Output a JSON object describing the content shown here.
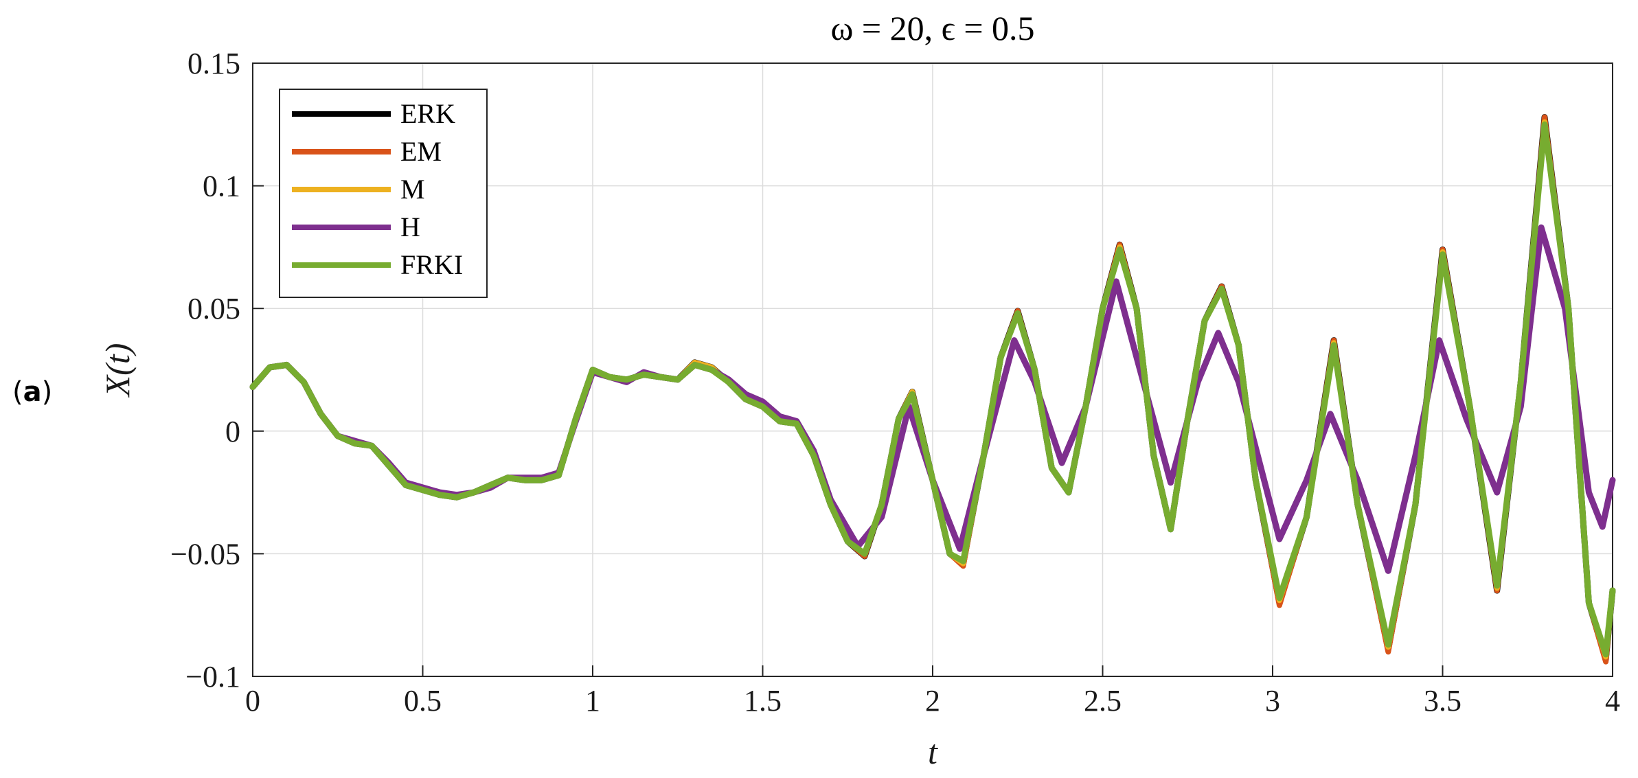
{
  "panel_label": {
    "open": "(",
    "letter": "a",
    "close": ")"
  },
  "chart_data": {
    "type": "line",
    "title": "ω = 20, ϵ = 0.5",
    "xlabel": "t",
    "ylabel": "X(t)",
    "xlim": [
      0,
      4
    ],
    "ylim": [
      -0.1,
      0.15
    ],
    "xticks": [
      0,
      0.5,
      1,
      1.5,
      2,
      2.5,
      3,
      3.5,
      4
    ],
    "xtick_labels": [
      "0",
      "0.5",
      "1",
      "1.5",
      "2",
      "2.5",
      "3",
      "3.5",
      "4"
    ],
    "yticks": [
      -0.1,
      -0.05,
      0,
      0.05,
      0.1,
      0.15
    ],
    "ytick_labels": [
      "−0.1",
      "−0.05",
      "0",
      "0.05",
      "0.1",
      "0.15"
    ],
    "grid": true,
    "legend_position": "top-left",
    "series": [
      {
        "name": "ERK",
        "color": "#000000",
        "x": [
          0,
          0.05,
          0.1,
          0.15,
          0.2,
          0.25,
          0.3,
          0.35,
          0.4,
          0.45,
          0.5,
          0.55,
          0.6,
          0.65,
          0.7,
          0.75,
          0.8,
          0.85,
          0.9,
          0.95,
          1.0,
          1.05,
          1.1,
          1.15,
          1.2,
          1.25,
          1.3,
          1.35,
          1.4,
          1.45,
          1.5,
          1.55,
          1.6,
          1.65,
          1.7,
          1.75,
          1.8,
          1.85,
          1.9,
          1.94,
          2.0,
          2.05,
          2.09,
          2.15,
          2.2,
          2.25,
          2.3,
          2.35,
          2.4,
          2.45,
          2.5,
          2.55,
          2.6,
          2.65,
          2.7,
          2.75,
          2.8,
          2.85,
          2.9,
          2.95,
          3.02,
          3.1,
          3.18,
          3.25,
          3.34,
          3.42,
          3.5,
          3.58,
          3.66,
          3.73,
          3.8,
          3.87,
          3.93,
          3.98,
          4.0
        ],
        "y": [
          0.018,
          0.026,
          0.027,
          0.02,
          0.007,
          -0.002,
          -0.005,
          -0.006,
          -0.014,
          -0.022,
          -0.024,
          -0.026,
          -0.027,
          -0.025,
          -0.022,
          -0.019,
          -0.02,
          -0.02,
          -0.018,
          0.005,
          0.025,
          0.022,
          0.021,
          0.023,
          0.022,
          0.021,
          0.028,
          0.026,
          0.02,
          0.013,
          0.01,
          0.004,
          0.003,
          -0.01,
          -0.03,
          -0.045,
          -0.051,
          -0.03,
          0.005,
          0.016,
          -0.02,
          -0.05,
          -0.054,
          -0.01,
          0.03,
          0.049,
          0.025,
          -0.015,
          -0.025,
          0.01,
          0.05,
          0.076,
          0.05,
          -0.01,
          -0.04,
          0.005,
          0.045,
          0.059,
          0.035,
          -0.02,
          -0.07,
          -0.035,
          0.037,
          -0.03,
          -0.089,
          -0.03,
          0.074,
          0.01,
          -0.065,
          0.02,
          0.128,
          0.05,
          -0.07,
          -0.093,
          -0.065
        ]
      },
      {
        "name": "EM",
        "color": "#D95319",
        "x": [
          0,
          0.05,
          0.1,
          0.15,
          0.2,
          0.25,
          0.3,
          0.35,
          0.4,
          0.45,
          0.5,
          0.55,
          0.6,
          0.65,
          0.7,
          0.75,
          0.8,
          0.85,
          0.9,
          0.95,
          1.0,
          1.05,
          1.1,
          1.15,
          1.2,
          1.25,
          1.3,
          1.35,
          1.4,
          1.45,
          1.5,
          1.55,
          1.6,
          1.65,
          1.7,
          1.75,
          1.8,
          1.85,
          1.9,
          1.94,
          2.0,
          2.05,
          2.09,
          2.15,
          2.2,
          2.25,
          2.3,
          2.35,
          2.4,
          2.45,
          2.5,
          2.55,
          2.6,
          2.65,
          2.7,
          2.75,
          2.8,
          2.85,
          2.9,
          2.95,
          3.02,
          3.1,
          3.18,
          3.25,
          3.34,
          3.42,
          3.5,
          3.58,
          3.66,
          3.73,
          3.8,
          3.87,
          3.93,
          3.98,
          4.0
        ],
        "y": [
          0.018,
          0.026,
          0.027,
          0.02,
          0.007,
          -0.002,
          -0.005,
          -0.006,
          -0.014,
          -0.022,
          -0.024,
          -0.026,
          -0.027,
          -0.025,
          -0.022,
          -0.019,
          -0.02,
          -0.02,
          -0.018,
          0.005,
          0.025,
          0.022,
          0.021,
          0.023,
          0.022,
          0.021,
          0.028,
          0.026,
          0.02,
          0.013,
          0.01,
          0.004,
          0.003,
          -0.01,
          -0.03,
          -0.045,
          -0.051,
          -0.03,
          0.005,
          0.016,
          -0.02,
          -0.05,
          -0.055,
          -0.01,
          0.03,
          0.049,
          0.025,
          -0.015,
          -0.025,
          0.01,
          0.05,
          0.076,
          0.05,
          -0.01,
          -0.04,
          0.005,
          0.045,
          0.059,
          0.035,
          -0.02,
          -0.071,
          -0.035,
          0.037,
          -0.03,
          -0.09,
          -0.03,
          0.074,
          0.01,
          -0.065,
          0.02,
          0.128,
          0.05,
          -0.07,
          -0.094,
          -0.065
        ]
      },
      {
        "name": "M",
        "color": "#EDB120",
        "x": [
          0,
          0.05,
          0.1,
          0.15,
          0.2,
          0.25,
          0.3,
          0.35,
          0.4,
          0.45,
          0.5,
          0.55,
          0.6,
          0.65,
          0.7,
          0.75,
          0.8,
          0.85,
          0.9,
          0.95,
          1.0,
          1.05,
          1.1,
          1.15,
          1.2,
          1.25,
          1.3,
          1.35,
          1.4,
          1.45,
          1.5,
          1.55,
          1.6,
          1.65,
          1.7,
          1.75,
          1.8,
          1.85,
          1.9,
          1.94,
          2.0,
          2.05,
          2.09,
          2.15,
          2.2,
          2.25,
          2.3,
          2.35,
          2.4,
          2.45,
          2.5,
          2.55,
          2.6,
          2.65,
          2.7,
          2.75,
          2.8,
          2.85,
          2.9,
          2.95,
          3.02,
          3.1,
          3.18,
          3.25,
          3.34,
          3.42,
          3.5,
          3.58,
          3.66,
          3.73,
          3.8,
          3.87,
          3.93,
          3.98,
          4.0
        ],
        "y": [
          0.018,
          0.026,
          0.027,
          0.02,
          0.007,
          -0.002,
          -0.005,
          -0.006,
          -0.014,
          -0.022,
          -0.024,
          -0.026,
          -0.027,
          -0.025,
          -0.022,
          -0.019,
          -0.02,
          -0.02,
          -0.018,
          0.005,
          0.025,
          0.022,
          0.021,
          0.023,
          0.022,
          0.021,
          0.028,
          0.026,
          0.02,
          0.013,
          0.01,
          0.004,
          0.003,
          -0.01,
          -0.03,
          -0.045,
          -0.05,
          -0.03,
          0.005,
          0.016,
          -0.02,
          -0.05,
          -0.054,
          -0.01,
          0.03,
          0.048,
          0.025,
          -0.015,
          -0.025,
          0.01,
          0.05,
          0.075,
          0.05,
          -0.01,
          -0.04,
          0.005,
          0.045,
          0.058,
          0.035,
          -0.02,
          -0.069,
          -0.035,
          0.036,
          -0.03,
          -0.088,
          -0.03,
          0.073,
          0.01,
          -0.064,
          0.02,
          0.126,
          0.05,
          -0.07,
          -0.092,
          -0.065
        ]
      },
      {
        "name": "H",
        "color": "#7E2F8E",
        "x": [
          0,
          0.05,
          0.1,
          0.15,
          0.2,
          0.25,
          0.3,
          0.35,
          0.4,
          0.45,
          0.5,
          0.55,
          0.6,
          0.65,
          0.7,
          0.75,
          0.8,
          0.85,
          0.9,
          0.95,
          1.0,
          1.05,
          1.1,
          1.15,
          1.2,
          1.25,
          1.3,
          1.35,
          1.4,
          1.45,
          1.5,
          1.55,
          1.6,
          1.65,
          1.7,
          1.78,
          1.85,
          1.93,
          2.0,
          2.08,
          2.15,
          2.24,
          2.3,
          2.38,
          2.45,
          2.54,
          2.6,
          2.7,
          2.78,
          2.84,
          2.9,
          3.02,
          3.1,
          3.17,
          3.25,
          3.34,
          3.42,
          3.49,
          3.57,
          3.66,
          3.73,
          3.79,
          3.86,
          3.93,
          3.97,
          4.0
        ],
        "y": [
          0.018,
          0.026,
          0.027,
          0.02,
          0.007,
          -0.002,
          -0.004,
          -0.006,
          -0.013,
          -0.021,
          -0.023,
          -0.025,
          -0.026,
          -0.025,
          -0.023,
          -0.019,
          -0.019,
          -0.019,
          -0.017,
          0.004,
          0.024,
          0.022,
          0.02,
          0.024,
          0.022,
          0.021,
          0.027,
          0.025,
          0.021,
          0.015,
          0.012,
          0.006,
          0.004,
          -0.008,
          -0.028,
          -0.047,
          -0.035,
          0.01,
          -0.02,
          -0.048,
          -0.01,
          0.037,
          0.02,
          -0.013,
          0.01,
          0.061,
          0.03,
          -0.021,
          0.02,
          0.04,
          0.02,
          -0.044,
          -0.02,
          0.007,
          -0.02,
          -0.057,
          -0.01,
          0.037,
          0.005,
          -0.025,
          0.01,
          0.083,
          0.05,
          -0.025,
          -0.039,
          -0.02
        ]
      },
      {
        "name": "FRKI",
        "color": "#77AC30",
        "x": [
          0,
          0.05,
          0.1,
          0.15,
          0.2,
          0.25,
          0.3,
          0.35,
          0.4,
          0.45,
          0.5,
          0.55,
          0.6,
          0.65,
          0.7,
          0.75,
          0.8,
          0.85,
          0.9,
          0.95,
          1.0,
          1.05,
          1.1,
          1.15,
          1.2,
          1.25,
          1.3,
          1.35,
          1.4,
          1.45,
          1.5,
          1.55,
          1.6,
          1.65,
          1.7,
          1.75,
          1.8,
          1.85,
          1.9,
          1.94,
          2.0,
          2.05,
          2.09,
          2.15,
          2.2,
          2.25,
          2.3,
          2.35,
          2.4,
          2.45,
          2.5,
          2.55,
          2.6,
          2.65,
          2.7,
          2.75,
          2.8,
          2.85,
          2.9,
          2.95,
          3.02,
          3.1,
          3.18,
          3.25,
          3.34,
          3.42,
          3.5,
          3.58,
          3.66,
          3.73,
          3.8,
          3.87,
          3.93,
          3.98,
          4.0
        ],
        "y": [
          0.018,
          0.026,
          0.027,
          0.02,
          0.007,
          -0.002,
          -0.005,
          -0.006,
          -0.014,
          -0.022,
          -0.024,
          -0.026,
          -0.027,
          -0.025,
          -0.022,
          -0.019,
          -0.02,
          -0.02,
          -0.018,
          0.005,
          0.025,
          0.022,
          0.021,
          0.023,
          0.022,
          0.021,
          0.027,
          0.025,
          0.02,
          0.013,
          0.01,
          0.004,
          0.003,
          -0.01,
          -0.03,
          -0.045,
          -0.05,
          -0.03,
          0.005,
          0.015,
          -0.02,
          -0.05,
          -0.053,
          -0.01,
          0.03,
          0.048,
          0.025,
          -0.015,
          -0.025,
          0.01,
          0.05,
          0.074,
          0.05,
          -0.01,
          -0.04,
          0.005,
          0.045,
          0.058,
          0.035,
          -0.02,
          -0.068,
          -0.035,
          0.035,
          -0.03,
          -0.087,
          -0.03,
          0.072,
          0.01,
          -0.063,
          0.02,
          0.125,
          0.05,
          -0.07,
          -0.091,
          -0.065
        ]
      }
    ]
  }
}
